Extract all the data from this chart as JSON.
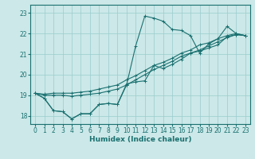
{
  "xlabel": "Humidex (Indice chaleur)",
  "bg_color": "#cce8e8",
  "grid_color": "#99cccc",
  "line_color": "#1a7070",
  "xlim": [
    -0.5,
    23.5
  ],
  "ylim": [
    17.6,
    23.4
  ],
  "xticks": [
    0,
    1,
    2,
    3,
    4,
    5,
    6,
    7,
    8,
    9,
    10,
    11,
    12,
    13,
    14,
    15,
    16,
    17,
    18,
    19,
    20,
    21,
    22,
    23
  ],
  "yticks": [
    18,
    19,
    20,
    21,
    22,
    23
  ],
  "series": [
    [
      19.1,
      18.85,
      18.25,
      18.2,
      17.85,
      18.1,
      18.1,
      18.55,
      18.6,
      18.55,
      19.5,
      21.4,
      22.85,
      22.75,
      22.6,
      22.2,
      22.15,
      21.9,
      21.05,
      21.5,
      21.75,
      22.35,
      22.0,
      21.9
    ],
    [
      19.1,
      18.85,
      18.25,
      18.2,
      17.85,
      18.1,
      18.1,
      18.55,
      18.6,
      18.55,
      19.55,
      19.65,
      19.7,
      20.45,
      20.3,
      20.5,
      20.75,
      21.05,
      21.15,
      21.3,
      21.45,
      21.85,
      21.95,
      21.9
    ],
    [
      19.1,
      19.05,
      19.1,
      19.1,
      19.1,
      19.15,
      19.2,
      19.3,
      19.4,
      19.5,
      19.75,
      19.95,
      20.2,
      20.45,
      20.6,
      20.8,
      21.05,
      21.2,
      21.45,
      21.55,
      21.75,
      21.9,
      22.0,
      21.9
    ],
    [
      19.1,
      19.0,
      19.0,
      19.0,
      18.95,
      19.0,
      19.05,
      19.1,
      19.2,
      19.3,
      19.5,
      19.75,
      20.0,
      20.25,
      20.45,
      20.65,
      20.9,
      21.05,
      21.2,
      21.4,
      21.6,
      21.8,
      21.95,
      21.9
    ]
  ]
}
